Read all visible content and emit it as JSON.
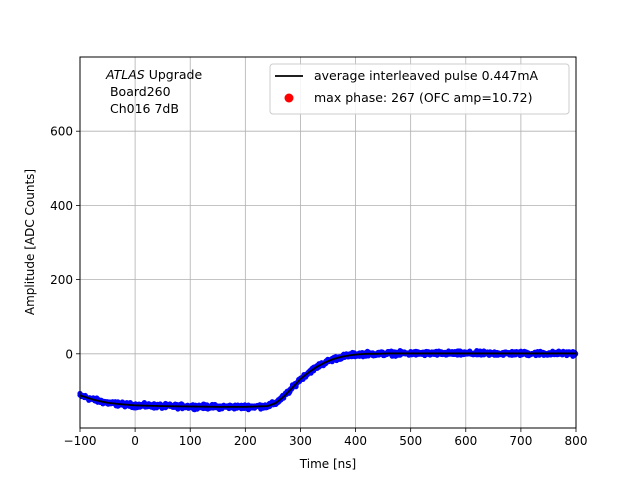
{
  "chart_data": {
    "type": "scatter",
    "xlabel": "Time [ns]",
    "ylabel": "Amplitude [ADC Counts]",
    "xlim": [
      -100,
      800
    ],
    "ylim": [
      -200,
      800
    ],
    "xticks": [
      -100,
      0,
      100,
      200,
      300,
      400,
      500,
      600,
      700,
      800
    ],
    "yticks": [
      0,
      200,
      400,
      600
    ],
    "grid": true,
    "legend_position": "upper-right",
    "annotation": {
      "italic_part": "ATLAS",
      "rest_line1": " Upgrade",
      "line2": " Board260",
      "line3": " Ch016 7dB"
    },
    "series": [
      {
        "name": "average interleaved pulse 0.447mA",
        "kind": "line",
        "color": "#000000",
        "x": [
          -100,
          -75,
          -50,
          -25,
          0,
          50,
          100,
          150,
          200,
          240,
          255,
          270,
          285,
          300,
          315,
          330,
          345,
          360,
          375,
          390,
          400,
          420,
          440,
          460,
          480,
          500,
          550,
          600,
          650,
          700,
          750,
          800
        ],
        "y": [
          -112,
          -124,
          -132,
          -136,
          -139,
          -141,
          -142,
          -143,
          -143,
          -141,
          -133,
          -115,
          -92,
          -68,
          -50,
          -35,
          -23,
          -14,
          -8,
          -4,
          -2,
          0,
          0,
          1,
          1,
          1,
          1,
          1,
          1,
          1,
          1,
          1
        ]
      },
      {
        "name": "",
        "kind": "scatter",
        "color": "#0000ff",
        "noise": 6
      },
      {
        "name": "max phase: 267 (OFC amp=10.72)",
        "kind": "marker",
        "color": "#ff0000"
      }
    ]
  }
}
